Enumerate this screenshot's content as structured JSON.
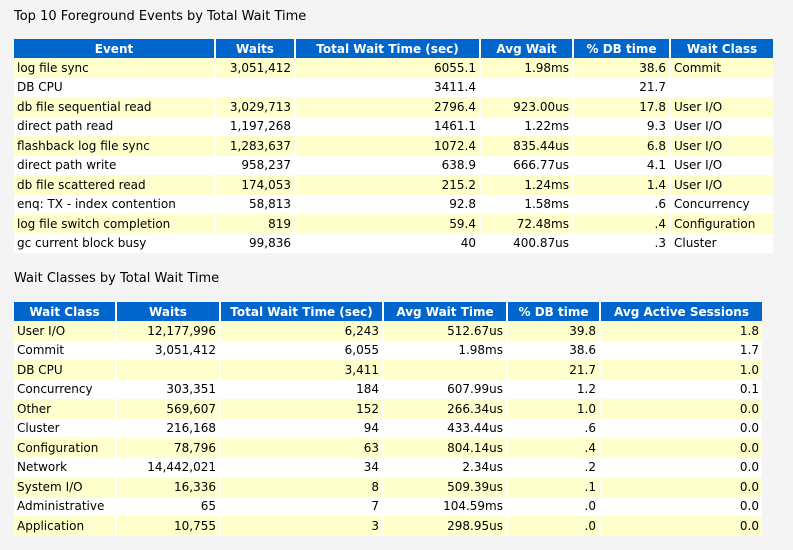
{
  "top_events": {
    "title": "Top 10 Foreground Events by Total Wait Time",
    "headers": [
      "Event",
      "Waits",
      "Total Wait Time (sec)",
      "Avg Wait",
      "% DB time",
      "Wait Class"
    ],
    "rows": [
      [
        "log file sync",
        "3,051,412",
        "6055.1",
        "1.98ms",
        "38.6",
        "Commit"
      ],
      [
        "DB CPU",
        "",
        "3411.4",
        "",
        "21.7",
        ""
      ],
      [
        "db file sequential read",
        "3,029,713",
        "2796.4",
        "923.00us",
        "17.8",
        "User I/O"
      ],
      [
        "direct path read",
        "1,197,268",
        "1461.1",
        "1.22ms",
        "9.3",
        "User I/O"
      ],
      [
        "flashback log file sync",
        "1,283,637",
        "1072.4",
        "835.44us",
        "6.8",
        "User I/O"
      ],
      [
        "direct path write",
        "958,237",
        "638.9",
        "666.77us",
        "4.1",
        "User I/O"
      ],
      [
        "db file scattered read",
        "174,053",
        "215.2",
        "1.24ms",
        "1.4",
        "User I/O"
      ],
      [
        "enq: TX - index contention",
        "58,813",
        "92.8",
        "1.58ms",
        ".6",
        "Concurrency"
      ],
      [
        "log file switch completion",
        "819",
        "59.4",
        "72.48ms",
        ".4",
        "Configuration"
      ],
      [
        "gc current block busy",
        "99,836",
        "40",
        "400.87us",
        ".3",
        "Cluster"
      ]
    ]
  },
  "wait_classes": {
    "title": "Wait Classes by Total Wait Time",
    "headers": [
      "Wait Class",
      "Waits",
      "Total Wait Time (sec)",
      "Avg Wait Time",
      "% DB time",
      "Avg Active Sessions"
    ],
    "rows": [
      [
        "User I/O",
        "12,177,996",
        "6,243",
        "512.67us",
        "39.8",
        "1.8"
      ],
      [
        "Commit",
        "3,051,412",
        "6,055",
        "1.98ms",
        "38.6",
        "1.7"
      ],
      [
        "DB CPU",
        "",
        "3,411",
        "",
        "21.7",
        "1.0"
      ],
      [
        "Concurrency",
        "303,351",
        "184",
        "607.99us",
        "1.2",
        "0.1"
      ],
      [
        "Other",
        "569,607",
        "152",
        "266.34us",
        "1.0",
        "0.0"
      ],
      [
        "Cluster",
        "216,168",
        "94",
        "433.44us",
        ".6",
        "0.0"
      ],
      [
        "Configuration",
        "78,796",
        "63",
        "804.14us",
        ".4",
        "0.0"
      ],
      [
        "Network",
        "14,442,021",
        "34",
        "2.34us",
        ".2",
        "0.0"
      ],
      [
        "System I/O",
        "16,336",
        "8",
        "509.39us",
        ".1",
        "0.0"
      ],
      [
        "Administrative",
        "65",
        "7",
        "104.59ms",
        ".0",
        "0.0"
      ],
      [
        "Application",
        "10,755",
        "3",
        "298.95us",
        ".0",
        "0.0"
      ]
    ]
  }
}
